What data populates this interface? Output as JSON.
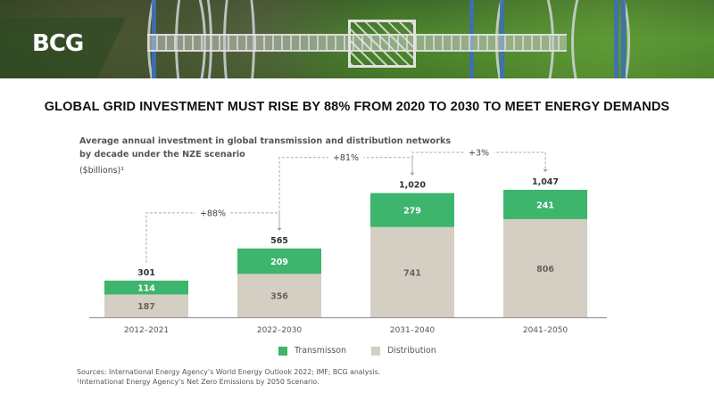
{
  "brand": {
    "logo_text": "BCG"
  },
  "header": {
    "title": "GLOBAL GRID INVESTMENT MUST RISE BY 88% FROM 2020 TO 2030 TO MEET ENERGY DEMANDS"
  },
  "colors": {
    "transmission": "#3db56c",
    "distribution": "#d4cec3",
    "axis": "#9a9a9a",
    "text_dark": "#333333"
  },
  "chart_data": {
    "type": "bar",
    "stacked": true,
    "title": "Average annual investment in global transmission and distribution networks by decade under the NZE scenario",
    "subtitle_line1": "Average annual investment in global transmission and distribution networks",
    "subtitle_line2": "by decade under the NZE scenario",
    "ylabel": "($billions)¹",
    "xlabel": "",
    "categories": [
      "2012–2021",
      "2022–2030",
      "2031–2040",
      "2041–2050"
    ],
    "series": [
      {
        "name": "Distribution",
        "values": [
          187,
          356,
          741,
          806
        ]
      },
      {
        "name": "Transmission",
        "values": [
          114,
          209,
          279,
          241
        ]
      }
    ],
    "totals": [
      "301",
      "565",
      "1,020",
      "1,047"
    ],
    "total_values": [
      301,
      565,
      1020,
      1047
    ],
    "growth_annotations": [
      {
        "from": 0,
        "to": 1,
        "label": "+88%"
      },
      {
        "from": 1,
        "to": 2,
        "label": "+81%"
      },
      {
        "from": 2,
        "to": 3,
        "label": "+3%"
      }
    ],
    "ylim": [
      0,
      1047
    ],
    "grid": false,
    "legend": {
      "position": "bottom-center",
      "entries": [
        "Transmisson",
        "Distribution"
      ]
    }
  },
  "footnotes": {
    "sources": "Sources: International Energy Agency’s World Energy Outlook 2022; IMF; BCG analysis.",
    "note1": "¹International Energy Agency’s Net Zero Emissions by 2050 Scenario."
  }
}
